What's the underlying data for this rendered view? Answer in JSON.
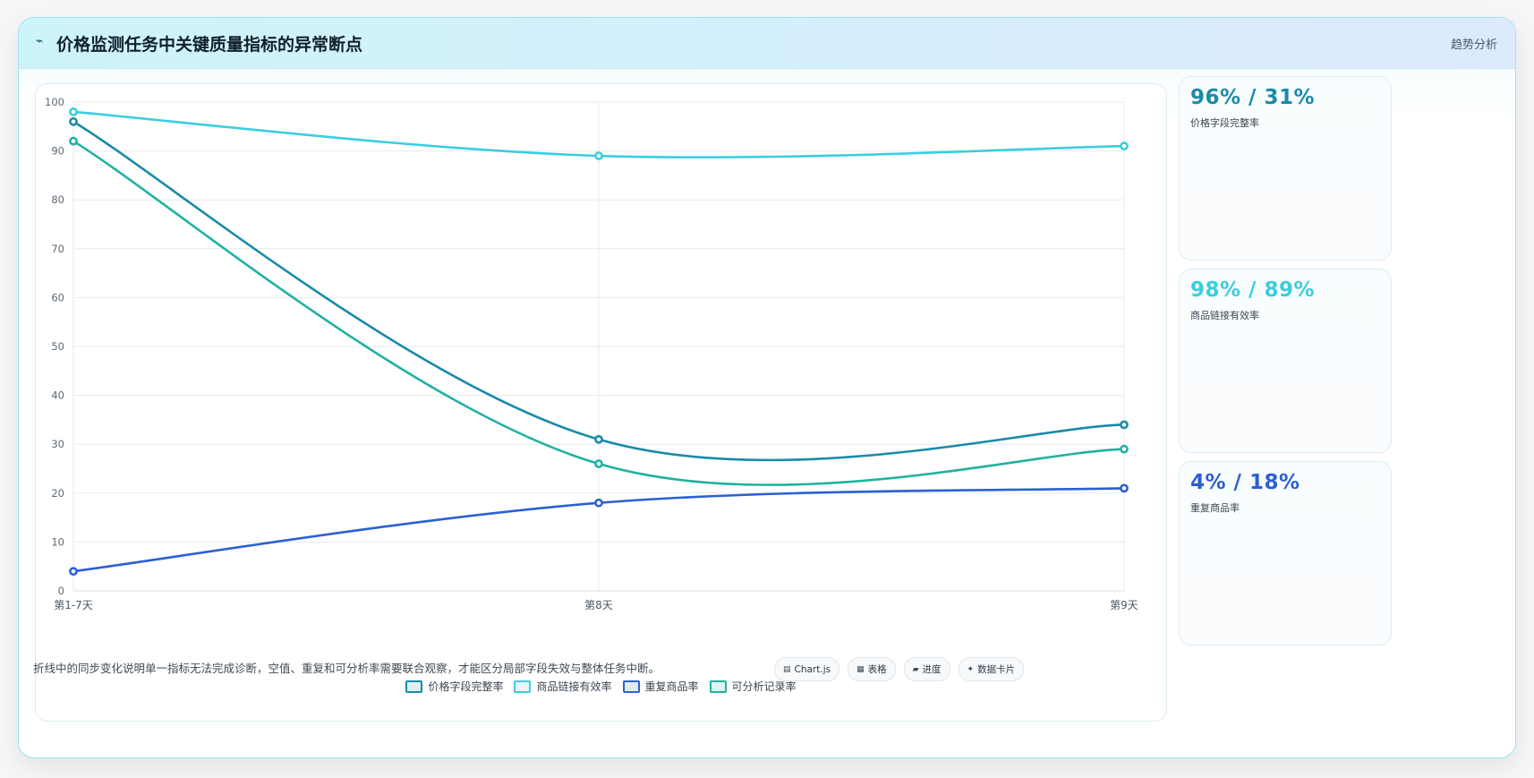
{
  "header": {
    "icon": "⌁",
    "title": "价格监测任务中关键质量指标的异常断点",
    "link": "趋势分析"
  },
  "chart_data": {
    "type": "line",
    "categories": [
      "第1-7天",
      "第8天",
      "第9天"
    ],
    "ylim": [
      0,
      100
    ],
    "yticks": [
      0,
      10,
      20,
      30,
      40,
      50,
      60,
      70,
      80,
      90,
      100
    ],
    "grid": true,
    "legend_position": "bottom",
    "series": [
      {
        "name": "价格字段完整率",
        "values": [
          96,
          31,
          34
        ],
        "color": "#1a8aa8"
      },
      {
        "name": "商品链接有效率",
        "values": [
          98,
          89,
          91
        ],
        "color": "#3bcde0"
      },
      {
        "name": "重复商品率",
        "values": [
          4,
          18,
          21
        ],
        "color": "#2b5fd4"
      },
      {
        "name": "可分析记录率",
        "values": [
          92,
          26,
          29
        ],
        "color": "#20b2a0"
      }
    ]
  },
  "stats": [
    {
      "value": "96% / 31%",
      "label": "价格字段完整率",
      "color": "#1a8aa8"
    },
    {
      "value": "98% / 89%",
      "label": "商品链接有效率",
      "color": "#3bcde0"
    },
    {
      "value": "4% / 18%",
      "label": "重复商品率",
      "color": "#2b5fd4"
    }
  ],
  "footer": {
    "note": "折线中的同步变化说明单一指标无法完成诊断，空值、重复和可分析率需要联合观察，才能区分局部字段失效与整体任务中断。",
    "chips": [
      {
        "icon": "▤",
        "label": "Chart.js"
      },
      {
        "icon": "▦",
        "label": "表格"
      },
      {
        "icon": "▰",
        "label": "进度"
      },
      {
        "icon": "✦",
        "label": "数据卡片"
      }
    ]
  }
}
